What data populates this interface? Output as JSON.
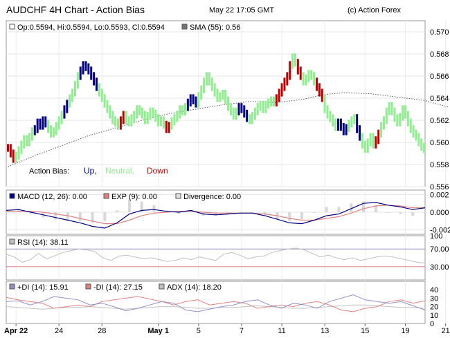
{
  "header": {
    "title": "AUDCHF 4H Chart - Action Bias",
    "timestamp": "May 22 17:05 GMT",
    "copyright": "(c) Action Forex"
  },
  "colors": {
    "up": "#000080",
    "neutral": "#90ee90",
    "down": "#c00000",
    "macd": "#000080",
    "exp": "#e08080",
    "divergence": "#d8d8d8",
    "rsi": "#c0c0c0",
    "plus_di": "#9090c8",
    "minus_di": "#e08080",
    "adx": "#c0c0c0",
    "rsi_70": "#9090c8",
    "rsi_30": "#e08080"
  },
  "chart_data": [
    {
      "type": "bar",
      "ohlc_legend": "Op:0.5594, Hi:0.5594, Lo:0.5593, Cl:0.5594",
      "sma_legend": "SMA (55): 0.56",
      "bias": {
        "label": "Action Bias:",
        "up": "Up,",
        "neutral": "Neutral,",
        "down": "Down"
      },
      "ylim": [
        0.556,
        0.571
      ],
      "yticks": [
        "0.556",
        "0.558",
        "0.560",
        "0.562",
        "0.564",
        "0.566",
        "0.568",
        "0.570"
      ],
      "x_labels": [
        "Apr 22",
        "24",
        "28",
        "May 1",
        "5",
        "7",
        "11",
        "13",
        "15",
        "19",
        "21"
      ],
      "x_label_bars": [
        3,
        19,
        35,
        56,
        71,
        87,
        102,
        118,
        133,
        148,
        163
      ],
      "bias_runs": [
        [
          "down",
          3
        ],
        [
          "neutral",
          7
        ],
        [
          "up",
          5
        ],
        [
          "neutral",
          6
        ],
        [
          "up",
          2
        ],
        [
          "neutral",
          4
        ],
        [
          "up",
          7
        ],
        [
          "neutral",
          8
        ],
        [
          "down",
          2
        ],
        [
          "neutral",
          15
        ],
        [
          "down",
          2
        ],
        [
          "neutral",
          6
        ],
        [
          "up",
          4
        ],
        [
          "neutral",
          15
        ],
        [
          "up",
          4
        ],
        [
          "neutral",
          10
        ],
        [
          "down",
          6
        ],
        [
          "neutral",
          2
        ],
        [
          "down",
          2
        ],
        [
          "neutral",
          5
        ],
        [
          "down",
          3
        ],
        [
          "neutral",
          5
        ],
        [
          "up",
          4
        ],
        [
          "neutral",
          3
        ],
        [
          "up",
          2
        ],
        [
          "neutral",
          5
        ],
        [
          "down",
          2
        ]
      ],
      "close": [
        0.5595,
        0.559,
        0.5585,
        0.5588,
        0.5593,
        0.5598,
        0.5603,
        0.56,
        0.5605,
        0.561,
        0.5612,
        0.5618,
        0.5615,
        0.562,
        0.5617,
        0.5612,
        0.5608,
        0.561,
        0.5615,
        0.562,
        0.5625,
        0.563,
        0.5635,
        0.564,
        0.5645,
        0.5652,
        0.566,
        0.5665,
        0.567,
        0.5668,
        0.5665,
        0.566,
        0.5655,
        0.565,
        0.5645,
        0.564,
        0.5635,
        0.563,
        0.5625,
        0.562,
        0.5618,
        0.5615,
        0.562,
        0.5625,
        0.562,
        0.5618,
        0.5622,
        0.5625,
        0.563,
        0.5628,
        0.5625,
        0.562,
        0.5624,
        0.5628,
        0.5626,
        0.5622,
        0.5618,
        0.562,
        0.5616,
        0.5612,
        0.5615,
        0.5619,
        0.5622,
        0.5625,
        0.563,
        0.5628,
        0.5632,
        0.5636,
        0.564,
        0.5638,
        0.5635,
        0.5642,
        0.5648,
        0.5655,
        0.566,
        0.5655,
        0.565,
        0.5645,
        0.564,
        0.5642,
        0.5644,
        0.5638,
        0.5632,
        0.5628,
        0.5624,
        0.5628,
        0.5632,
        0.563,
        0.5626,
        0.5622,
        0.562,
        0.5624,
        0.5628,
        0.5632,
        0.5634,
        0.563,
        0.5634,
        0.5636,
        0.5638,
        0.5636,
        0.564,
        0.5645,
        0.565,
        0.5655,
        0.566,
        0.567,
        0.5677,
        0.5672,
        0.5665,
        0.566,
        0.5655,
        0.5658,
        0.5662,
        0.566,
        0.5655,
        0.565,
        0.5645,
        0.564,
        0.563,
        0.5625,
        0.5622,
        0.5618,
        0.5614,
        0.5618,
        0.5614,
        0.561,
        0.5613,
        0.5617,
        0.562,
        0.5622,
        0.5612,
        0.5605,
        0.5598,
        0.5594,
        0.56,
        0.5605,
        0.5598,
        0.5602,
        0.5608,
        0.5615,
        0.562,
        0.5628,
        0.5633,
        0.5628,
        0.5622,
        0.5618,
        0.5623,
        0.563,
        0.5625,
        0.5618,
        0.5612,
        0.5608,
        0.5605,
        0.56,
        0.5596,
        0.5594
      ],
      "sma": [
        [
          0,
          0.5578
        ],
        [
          10,
          0.5588
        ],
        [
          20,
          0.5597
        ],
        [
          30,
          0.5606
        ],
        [
          40,
          0.5613
        ],
        [
          50,
          0.562
        ],
        [
          60,
          0.5626
        ],
        [
          70,
          0.563
        ],
        [
          80,
          0.5634
        ],
        [
          90,
          0.5637
        ],
        [
          100,
          0.5636
        ],
        [
          110,
          0.5639
        ],
        [
          117,
          0.5643
        ],
        [
          125,
          0.5645
        ],
        [
          135,
          0.5644
        ],
        [
          145,
          0.5641
        ],
        [
          155,
          0.5638
        ],
        [
          164,
          0.5632
        ]
      ]
    },
    {
      "type": "line",
      "legend": [
        {
          "name": "MACD (12, 26): 0.00"
        },
        {
          "name": "EXP (9): 0.00"
        },
        {
          "name": "Divergence: 0.00"
        }
      ],
      "ylim": [
        -0.0025,
        0.0025
      ],
      "yticks": [
        "0.002",
        "0.000",
        "-0.002"
      ],
      "macd": [
        0.0002,
        0.0003,
        0.0,
        -0.0003,
        -0.0006,
        -0.0009,
        -0.0012,
        -0.0016,
        -0.0018,
        -0.0012,
        -0.0002,
        0.0002,
        0.0003,
        0.0001,
        0.0,
        0.0002,
        -0.0002,
        -0.0003,
        -0.0002,
        -0.0001,
        -0.0001,
        -0.0004,
        -0.0008,
        -0.0012,
        -0.0013,
        -0.0009,
        -0.0004,
        -0.0002,
        0.0004,
        0.001,
        0.0011,
        0.0008,
        0.0006,
        0.0003,
        0.0005
      ],
      "exp": [
        0.0001,
        0.0001,
        0.0001,
        0.0,
        -0.0002,
        -0.0004,
        -0.0007,
        -0.001,
        -0.0013,
        -0.0013,
        -0.0009,
        -0.0004,
        -0.0001,
        0.0,
        0.0001,
        0.0001,
        0.0,
        -0.0001,
        -0.0001,
        -0.0001,
        -0.0001,
        -0.0002,
        -0.0004,
        -0.0007,
        -0.0009,
        -0.0009,
        -0.0007,
        -0.0005,
        -0.0001,
        0.0004,
        0.0007,
        0.0008,
        0.0007,
        0.0005,
        0.0005
      ]
    },
    {
      "type": "line",
      "legend": [
        {
          "name": "RSI (14): 38.11"
        }
      ],
      "ylim": [
        0,
        100
      ],
      "yticks": [
        "100",
        "70.00",
        "30.00"
      ],
      "levels": [
        70,
        30
      ],
      "rsi": [
        58,
        52,
        40,
        46,
        60,
        48,
        54,
        62,
        66,
        70,
        68,
        64,
        50,
        44,
        54,
        56,
        52,
        48,
        50,
        46,
        42,
        44,
        50,
        46,
        52,
        48,
        44,
        58,
        62,
        56,
        48,
        52,
        54,
        62,
        66,
        70,
        72,
        68,
        60,
        52,
        56,
        50,
        46,
        50,
        44,
        48,
        52,
        54,
        52,
        48,
        44,
        40,
        38
      ]
    },
    {
      "type": "line",
      "legend": [
        {
          "name": "+DI (14): 15.91"
        },
        {
          "name": "-DI (14): 27.15"
        },
        {
          "name": "ADX (14): 18.20"
        }
      ],
      "ylim": [
        0,
        50
      ],
      "yticks": [
        "40",
        "30",
        "20",
        "10",
        "0"
      ],
      "plus_di": [
        26,
        27,
        22,
        26,
        32,
        30,
        28,
        22,
        24,
        20,
        15,
        18,
        22,
        26,
        24,
        16,
        14,
        17,
        20,
        22,
        26,
        28,
        22,
        18,
        24,
        22,
        18,
        26,
        30,
        34,
        28,
        26,
        24,
        26,
        21,
        16
      ],
      "minus_di": [
        31,
        28,
        26,
        24,
        18,
        20,
        22,
        20,
        26,
        28,
        30,
        32,
        29,
        26,
        22,
        26,
        28,
        22,
        24,
        26,
        24,
        18,
        20,
        22,
        20,
        24,
        26,
        22,
        16,
        14,
        18,
        20,
        26,
        28,
        24,
        27
      ],
      "adx": [
        20,
        19,
        18,
        17,
        18,
        19,
        19,
        20,
        19,
        18,
        17,
        18,
        19,
        20,
        20,
        19,
        18,
        18,
        19,
        19,
        20,
        21,
        20,
        19,
        18,
        18,
        19,
        20,
        21,
        22,
        22,
        21,
        20,
        19,
        19,
        18
      ]
    }
  ]
}
